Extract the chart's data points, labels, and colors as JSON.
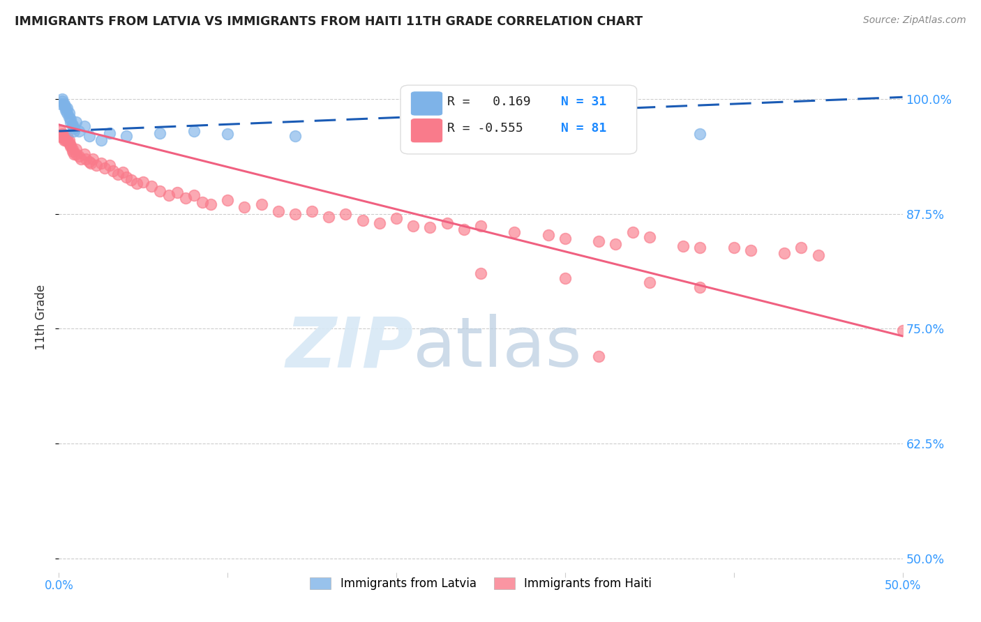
{
  "title": "IMMIGRANTS FROM LATVIA VS IMMIGRANTS FROM HAITI 11TH GRADE CORRELATION CHART",
  "source": "Source: ZipAtlas.com",
  "ylabel": "11th Grade",
  "yticks": [
    "100.0%",
    "87.5%",
    "75.0%",
    "62.5%",
    "50.0%"
  ],
  "ytick_vals": [
    1.0,
    0.875,
    0.75,
    0.625,
    0.5
  ],
  "xticks_vals": [
    0.0,
    0.1,
    0.2,
    0.3,
    0.4,
    0.5
  ],
  "xlim": [
    0.0,
    0.5
  ],
  "ylim": [
    0.485,
    1.04
  ],
  "legend_r_latvia": "R =   0.169",
  "legend_n_latvia": "N = 31",
  "legend_r_haiti": "R = -0.555",
  "legend_n_haiti": "N = 81",
  "latvia_color": "#7EB3E8",
  "haiti_color": "#F97B8B",
  "trendline_latvia_color": "#1A5BB5",
  "trendline_haiti_color": "#F06080",
  "background_color": "#FFFFFF",
  "latvia_trendline_x": [
    0.0,
    0.5
  ],
  "latvia_trendline_y": [
    0.965,
    1.002
  ],
  "haiti_trendline_x": [
    0.0,
    0.5
  ],
  "haiti_trendline_y": [
    0.972,
    0.742
  ],
  "latvia_points_x": [
    0.001,
    0.002,
    0.002,
    0.003,
    0.003,
    0.004,
    0.004,
    0.005,
    0.005,
    0.006,
    0.006,
    0.007,
    0.007,
    0.008,
    0.008,
    0.009,
    0.009,
    0.01,
    0.012,
    0.015,
    0.018,
    0.025,
    0.03,
    0.04,
    0.06,
    0.08,
    0.1,
    0.14,
    0.22,
    0.28,
    0.38
  ],
  "latvia_points_y": [
    0.995,
    1.0,
    0.998,
    0.995,
    0.993,
    0.99,
    0.988,
    0.985,
    0.99,
    0.985,
    0.98,
    0.978,
    0.975,
    0.972,
    0.97,
    0.968,
    0.965,
    0.975,
    0.965,
    0.97,
    0.96,
    0.955,
    0.963,
    0.96,
    0.963,
    0.965,
    0.962,
    0.96,
    0.958,
    0.96,
    0.962
  ],
  "haiti_points_x": [
    0.001,
    0.001,
    0.002,
    0.002,
    0.003,
    0.003,
    0.004,
    0.004,
    0.005,
    0.005,
    0.006,
    0.006,
    0.007,
    0.007,
    0.008,
    0.008,
    0.009,
    0.01,
    0.01,
    0.012,
    0.013,
    0.015,
    0.016,
    0.018,
    0.019,
    0.02,
    0.022,
    0.025,
    0.027,
    0.03,
    0.032,
    0.035,
    0.038,
    0.04,
    0.043,
    0.046,
    0.05,
    0.055,
    0.06,
    0.065,
    0.07,
    0.075,
    0.08,
    0.085,
    0.09,
    0.1,
    0.11,
    0.12,
    0.13,
    0.14,
    0.15,
    0.16,
    0.17,
    0.18,
    0.19,
    0.2,
    0.21,
    0.22,
    0.23,
    0.24,
    0.25,
    0.27,
    0.29,
    0.3,
    0.32,
    0.33,
    0.34,
    0.35,
    0.37,
    0.38,
    0.4,
    0.41,
    0.43,
    0.44,
    0.45,
    0.25,
    0.3,
    0.35,
    0.38,
    0.5,
    0.32
  ],
  "haiti_points_y": [
    0.965,
    0.96,
    0.962,
    0.958,
    0.96,
    0.955,
    0.958,
    0.955,
    0.96,
    0.955,
    0.955,
    0.952,
    0.95,
    0.948,
    0.945,
    0.943,
    0.94,
    0.945,
    0.94,
    0.938,
    0.935,
    0.94,
    0.935,
    0.932,
    0.93,
    0.935,
    0.928,
    0.93,
    0.925,
    0.928,
    0.922,
    0.918,
    0.92,
    0.915,
    0.912,
    0.908,
    0.91,
    0.905,
    0.9,
    0.895,
    0.898,
    0.892,
    0.895,
    0.888,
    0.885,
    0.89,
    0.882,
    0.885,
    0.878,
    0.875,
    0.878,
    0.872,
    0.875,
    0.868,
    0.865,
    0.87,
    0.862,
    0.86,
    0.865,
    0.858,
    0.862,
    0.855,
    0.852,
    0.848,
    0.845,
    0.842,
    0.855,
    0.85,
    0.84,
    0.838,
    0.838,
    0.835,
    0.832,
    0.838,
    0.83,
    0.81,
    0.805,
    0.8,
    0.795,
    0.748,
    0.72
  ]
}
